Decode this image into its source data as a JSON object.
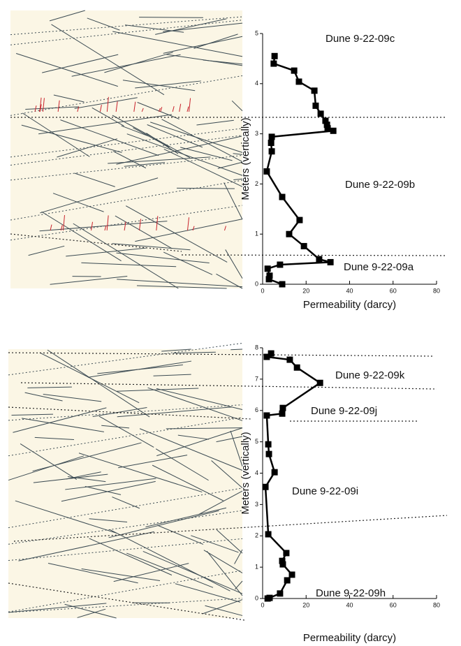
{
  "chart_data": [
    {
      "type": "line",
      "annotations": [
        "Dune 9-22-09c",
        "Dune 9-22-09b",
        "Dune 9-22-09a"
      ],
      "xlabel": "Permeability (darcy)",
      "ylabel": "Meters (vertically)",
      "xlim": [
        0,
        80
      ],
      "xticks": [
        0,
        20,
        40,
        60,
        80
      ],
      "ylim": [
        0,
        5
      ],
      "yticks": [
        0,
        1,
        2,
        3,
        4,
        5
      ],
      "series": [
        {
          "color": "#000000",
          "x": [
            5.5,
            5.1,
            14.5,
            16.7,
            23.8,
            24.4,
            26.7,
            28.9,
            29.6,
            29.9,
            32.5,
            4.2,
            3.9,
            4.2,
            1.9,
            9,
            17,
            12.2,
            19,
            26,
            31.2,
            8,
            2.3,
            3.2,
            2.9,
            9
          ],
          "values": [
            4.55,
            4.4,
            4.26,
            4.04,
            3.86,
            3.56,
            3.4,
            3.26,
            3.18,
            3.11,
            3.06,
            2.94,
            2.82,
            2.65,
            2.25,
            1.74,
            1.28,
            1.0,
            0.76,
            0.5,
            0.44,
            0.39,
            0.31,
            0.17,
            0.1,
            0
          ]
        }
      ]
    },
    {
      "type": "line",
      "annotations": [
        "Dune 9-22-09k",
        "Dune 9-22-09j",
        "Dune 9-22-09i",
        "Dune 9-22-09h"
      ],
      "xlabel": "Permeability (darcy)",
      "ylabel": "Meters (vertically)",
      "xlim": [
        0,
        80
      ],
      "xticks": [
        0,
        20,
        40,
        60,
        80
      ],
      "ylim": [
        0,
        8
      ],
      "yticks": [
        0,
        1,
        2,
        3,
        4,
        5,
        6,
        7,
        8
      ],
      "series": [
        {
          "color": "#000000",
          "x": [
            3.9,
            1.9,
            12.5,
            15.8,
            26.4,
            9.3,
            9,
            1.9,
            2.6,
            2.9,
            5.5,
            1.3,
            2.6,
            10.9,
            9,
            9.3,
            13.5,
            11.3,
            8,
            3.2,
            2.3
          ],
          "values": [
            7.82,
            7.71,
            7.62,
            7.37,
            6.88,
            6.08,
            5.9,
            5.84,
            4.92,
            4.61,
            4.03,
            3.56,
            2.05,
            1.45,
            1.2,
            1.09,
            0.76,
            0.58,
            0.16,
            0.02,
            0
          ]
        }
      ]
    }
  ]
}
